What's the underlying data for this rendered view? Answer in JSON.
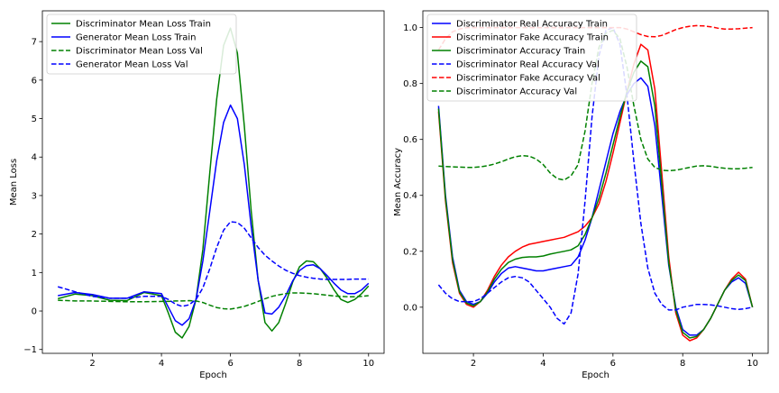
{
  "chart_data": [
    {
      "type": "line",
      "xlabel": "Epoch",
      "ylabel": "Mean Loss",
      "xlim": [
        0.55,
        10.45
      ],
      "ylim": [
        -1.1,
        7.8
      ],
      "xticks": [
        2,
        4,
        6,
        8,
        10
      ],
      "yticks": [
        -1,
        0,
        1,
        2,
        3,
        4,
        5,
        6,
        7
      ],
      "grid": false,
      "legend": "top-left",
      "x": [
        1,
        1.5,
        2,
        2.5,
        3,
        3.5,
        4,
        4.2,
        4.4,
        4.6,
        4.8,
        5,
        5.2,
        5.4,
        5.6,
        5.8,
        6,
        6.2,
        6.4,
        6.6,
        6.8,
        7,
        7.2,
        7.4,
        7.6,
        7.8,
        8,
        8.2,
        8.4,
        8.6,
        8.8,
        9,
        9.2,
        9.4,
        9.6,
        9.8,
        10
      ],
      "series": [
        {
          "name": "Discriminator Mean Loss Train",
          "color": "#008000",
          "dash": "solid",
          "values": [
            0.32,
            0.44,
            0.4,
            0.28,
            0.27,
            0.48,
            0.4,
            -0.05,
            -0.55,
            -0.7,
            -0.4,
            0.3,
            1.6,
            3.6,
            5.5,
            6.9,
            7.35,
            6.7,
            4.8,
            2.6,
            0.8,
            -0.3,
            -0.52,
            -0.3,
            0.2,
            0.75,
            1.15,
            1.3,
            1.28,
            1.1,
            0.85,
            0.55,
            0.3,
            0.22,
            0.3,
            0.45,
            0.65
          ]
        },
        {
          "name": "Generator Mean Loss Train",
          "color": "#0000ff",
          "dash": "solid",
          "values": [
            0.4,
            0.48,
            0.43,
            0.33,
            0.33,
            0.5,
            0.45,
            0.1,
            -0.25,
            -0.37,
            -0.2,
            0.3,
            1.3,
            2.6,
            3.9,
            4.9,
            5.35,
            5.0,
            3.8,
            2.2,
            0.8,
            -0.05,
            -0.08,
            0.1,
            0.4,
            0.78,
            1.05,
            1.18,
            1.2,
            1.1,
            0.92,
            0.72,
            0.55,
            0.45,
            0.45,
            0.55,
            0.72
          ]
        },
        {
          "name": "Discriminator Mean Loss Val",
          "color": "#008000",
          "dash": "dashed",
          "values": [
            0.28,
            0.26,
            0.26,
            0.25,
            0.24,
            0.24,
            0.25,
            0.25,
            0.26,
            0.26,
            0.27,
            0.26,
            0.22,
            0.15,
            0.09,
            0.06,
            0.05,
            0.08,
            0.12,
            0.18,
            0.25,
            0.32,
            0.38,
            0.42,
            0.45,
            0.47,
            0.47,
            0.46,
            0.45,
            0.43,
            0.41,
            0.39,
            0.38,
            0.37,
            0.37,
            0.38,
            0.4
          ]
        },
        {
          "name": "Generator Mean Loss Val",
          "color": "#0000ff",
          "dash": "dashed",
          "values": [
            0.63,
            0.5,
            0.38,
            0.33,
            0.33,
            0.38,
            0.38,
            0.3,
            0.18,
            0.12,
            0.16,
            0.3,
            0.6,
            1.1,
            1.65,
            2.1,
            2.32,
            2.3,
            2.15,
            1.9,
            1.65,
            1.45,
            1.3,
            1.17,
            1.06,
            0.98,
            0.92,
            0.88,
            0.85,
            0.83,
            0.82,
            0.82,
            0.82,
            0.82,
            0.83,
            0.83,
            0.83
          ]
        }
      ]
    },
    {
      "type": "line",
      "xlabel": "Epoch",
      "ylabel": "Mean Accuracy",
      "xlim": [
        0.55,
        10.45
      ],
      "ylim": [
        -0.165,
        1.06
      ],
      "xticks": [
        2,
        4,
        6,
        8,
        10
      ],
      "yticks": [
        0.0,
        0.2,
        0.4,
        0.6,
        0.8,
        1.0
      ],
      "ytick_labels": [
        "0.0",
        "0.2",
        "0.4",
        "0.6",
        "0.8",
        "1.0"
      ],
      "grid": false,
      "legend": "top-left",
      "x": [
        1,
        1.2,
        1.4,
        1.6,
        1.8,
        2,
        2.2,
        2.4,
        2.6,
        2.8,
        3,
        3.2,
        3.4,
        3.6,
        3.8,
        4,
        4.2,
        4.4,
        4.6,
        4.8,
        5,
        5.2,
        5.4,
        5.6,
        5.8,
        6,
        6.2,
        6.4,
        6.6,
        6.8,
        7,
        7.2,
        7.4,
        7.6,
        7.8,
        8,
        8.2,
        8.4,
        8.6,
        8.8,
        9,
        9.2,
        9.4,
        9.6,
        9.8,
        10
      ],
      "series": [
        {
          "name": "Discriminator Real Accuracy Train",
          "color": "#0000ff",
          "dash": "solid",
          "values": [
            0.72,
            0.4,
            0.18,
            0.06,
            0.02,
            0.01,
            0.02,
            0.05,
            0.09,
            0.12,
            0.14,
            0.145,
            0.14,
            0.135,
            0.13,
            0.13,
            0.135,
            0.14,
            0.145,
            0.15,
            0.18,
            0.24,
            0.32,
            0.42,
            0.52,
            0.62,
            0.7,
            0.76,
            0.8,
            0.82,
            0.79,
            0.65,
            0.4,
            0.15,
            0.0,
            -0.08,
            -0.1,
            -0.1,
            -0.08,
            -0.04,
            0.01,
            0.06,
            0.09,
            0.105,
            0.085,
            0.0
          ]
        },
        {
          "name": "Discriminator Fake Accuracy Train",
          "color": "#ff0000",
          "dash": "solid",
          "values": [
            0.7,
            0.38,
            0.16,
            0.05,
            0.01,
            0.0,
            0.02,
            0.06,
            0.11,
            0.15,
            0.18,
            0.2,
            0.215,
            0.225,
            0.23,
            0.235,
            0.24,
            0.245,
            0.25,
            0.26,
            0.27,
            0.29,
            0.32,
            0.37,
            0.45,
            0.55,
            0.66,
            0.77,
            0.87,
            0.94,
            0.92,
            0.78,
            0.48,
            0.18,
            -0.02,
            -0.1,
            -0.12,
            -0.11,
            -0.08,
            -0.04,
            0.01,
            0.06,
            0.1,
            0.125,
            0.1,
            0.0
          ]
        },
        {
          "name": "Discriminator Accuracy Train",
          "color": "#008000",
          "dash": "solid",
          "values": [
            0.71,
            0.39,
            0.17,
            0.055,
            0.015,
            0.005,
            0.02,
            0.055,
            0.1,
            0.135,
            0.16,
            0.172,
            0.178,
            0.18,
            0.18,
            0.183,
            0.19,
            0.195,
            0.2,
            0.205,
            0.22,
            0.26,
            0.32,
            0.39,
            0.48,
            0.58,
            0.68,
            0.77,
            0.84,
            0.88,
            0.86,
            0.72,
            0.44,
            0.16,
            -0.01,
            -0.09,
            -0.11,
            -0.105,
            -0.08,
            -0.04,
            0.01,
            0.06,
            0.095,
            0.115,
            0.095,
            0.0
          ]
        },
        {
          "name": "Discriminator Real Accuracy Val",
          "color": "#0000ff",
          "dash": "dashed",
          "values": [
            0.08,
            0.05,
            0.03,
            0.02,
            0.02,
            0.02,
            0.03,
            0.05,
            0.07,
            0.09,
            0.105,
            0.11,
            0.105,
            0.09,
            0.06,
            0.03,
            0.0,
            -0.04,
            -0.06,
            -0.02,
            0.12,
            0.38,
            0.68,
            0.9,
            0.99,
            1.0,
            0.94,
            0.76,
            0.52,
            0.3,
            0.14,
            0.05,
            0.01,
            -0.01,
            -0.01,
            0.0,
            0.005,
            0.01,
            0.01,
            0.008,
            0.005,
            0.0,
            -0.005,
            -0.008,
            -0.005,
            0.0
          ]
        },
        {
          "name": "Discriminator Fake Accuracy Val",
          "color": "#ff0000",
          "dash": "dashed",
          "values": [
            0.92,
            0.96,
            0.985,
            0.995,
            1.0,
            1.0,
            1.0,
            1.0,
            1.0,
            1.0,
            1.0,
            1.0,
            1.0,
            1.0,
            1.0,
            1.0,
            1.0,
            1.0,
            1.0,
            1.0,
            1.0,
            1.0,
            1.0,
            1.0,
            1.0,
            1.0,
            1.0,
            0.995,
            0.985,
            0.975,
            0.968,
            0.967,
            0.972,
            0.982,
            0.993,
            1.0,
            1.005,
            1.007,
            1.006,
            1.003,
            0.998,
            0.995,
            0.995,
            0.996,
            0.998,
            1.0
          ]
        },
        {
          "name": "Discriminator Accuracy Val",
          "color": "#008000",
          "dash": "dashed",
          "values": [
            0.505,
            0.503,
            0.502,
            0.501,
            0.5,
            0.5,
            0.502,
            0.506,
            0.512,
            0.52,
            0.53,
            0.538,
            0.542,
            0.54,
            0.53,
            0.51,
            0.48,
            0.46,
            0.455,
            0.47,
            0.51,
            0.63,
            0.8,
            0.93,
            0.98,
            0.99,
            0.96,
            0.86,
            0.72,
            0.6,
            0.53,
            0.5,
            0.49,
            0.488,
            0.49,
            0.495,
            0.5,
            0.505,
            0.506,
            0.504,
            0.5,
            0.497,
            0.495,
            0.495,
            0.497,
            0.5
          ]
        }
      ]
    }
  ]
}
